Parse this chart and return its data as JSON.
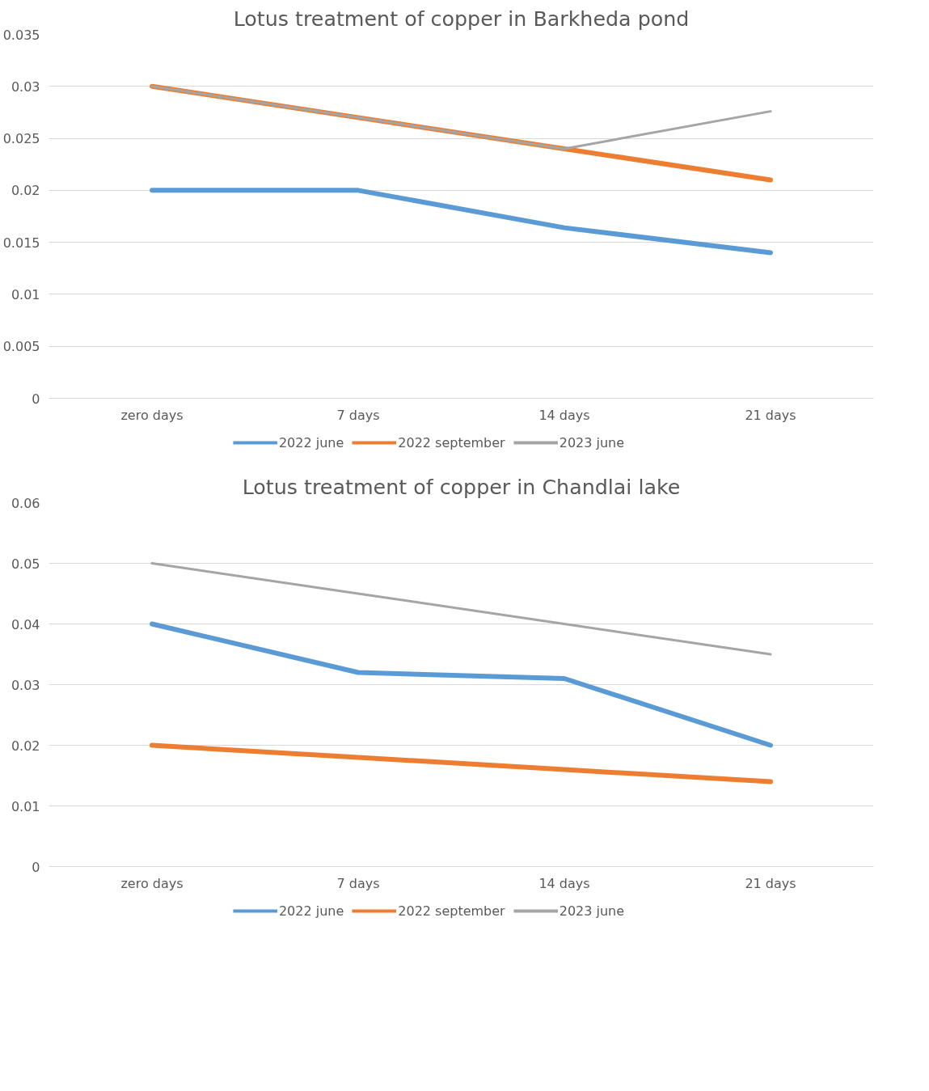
{
  "chart_data": [
    {
      "type": "line",
      "title": "Lotus treatment of copper in Barkheda pond",
      "categories": [
        "zero days",
        "7 days",
        "14 days",
        "21 days"
      ],
      "series": [
        {
          "name": "2022 june",
          "color": "#5b9bd5",
          "values": [
            0.02,
            0.02,
            0.0164,
            0.014
          ]
        },
        {
          "name": "2022 september",
          "color": "#ed7d31",
          "values": [
            0.03,
            0.027,
            0.024,
            0.021
          ]
        },
        {
          "name": "2023 june",
          "color": "#a5a5a5",
          "values": [
            0.03,
            0.027,
            0.024,
            0.0276
          ]
        }
      ],
      "ylim": [
        0,
        0.035
      ],
      "yticks": [
        0,
        0.005,
        0.01,
        0.015,
        0.02,
        0.025,
        0.03,
        0.035
      ],
      "grid": "y",
      "legend": "bottom",
      "marker": "none",
      "line_style": "solid"
    },
    {
      "type": "line",
      "title": "Lotus treatment of copper in Chandlai lake",
      "categories": [
        "zero days",
        "7 days",
        "14 days",
        "21 days"
      ],
      "series": [
        {
          "name": "2022 june",
          "color": "#5b9bd5",
          "values": [
            0.04,
            0.032,
            0.031,
            0.02
          ]
        },
        {
          "name": "2022 september",
          "color": "#ed7d31",
          "values": [
            0.02,
            0.018,
            0.016,
            0.014
          ]
        },
        {
          "name": "2023 june",
          "color": "#a5a5a5",
          "values": [
            0.05,
            0.045,
            0.04,
            0.035
          ]
        }
      ],
      "ylim": [
        0,
        0.06
      ],
      "yticks": [
        0,
        0.01,
        0.02,
        0.03,
        0.04,
        0.05,
        0.06
      ],
      "grid": "y",
      "legend": "bottom",
      "marker": "none",
      "line_style": "solid"
    }
  ]
}
